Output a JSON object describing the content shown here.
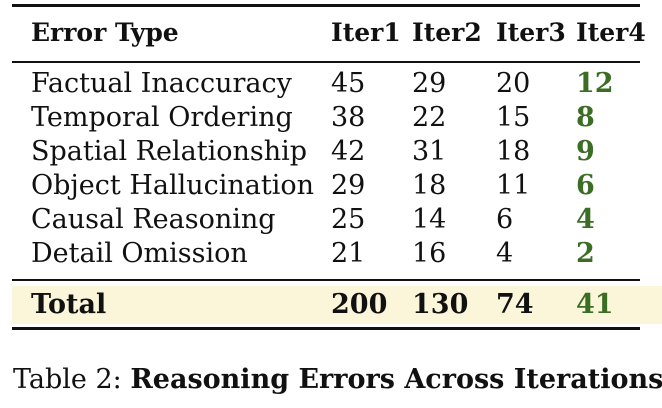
{
  "table": {
    "headers": [
      "Error Type",
      "Iter1",
      "Iter2",
      "Iter3",
      "Iter4"
    ],
    "rows": [
      [
        "Factual Inaccuracy",
        "45",
        "29",
        "20",
        "12"
      ],
      [
        "Temporal Ordering",
        "38",
        "22",
        "15",
        "8"
      ],
      [
        "Spatial Relationship",
        "42",
        "31",
        "18",
        "9"
      ],
      [
        "Object Hallucination",
        "29",
        "18",
        "11",
        "6"
      ],
      [
        "Causal Reasoning",
        "25",
        "14",
        "6",
        "4"
      ],
      [
        "Detail Omission",
        "21",
        "16",
        "4",
        "2"
      ]
    ],
    "total": [
      "Total",
      "200",
      "130",
      "74",
      "41"
    ]
  },
  "caption": {
    "label": "Table 2:",
    "title": "Reasoning Errors Across Iterations",
    "suffix": "."
  },
  "colors": {
    "accent": "#3b6d24",
    "total_highlight": "#fbf6d9"
  }
}
